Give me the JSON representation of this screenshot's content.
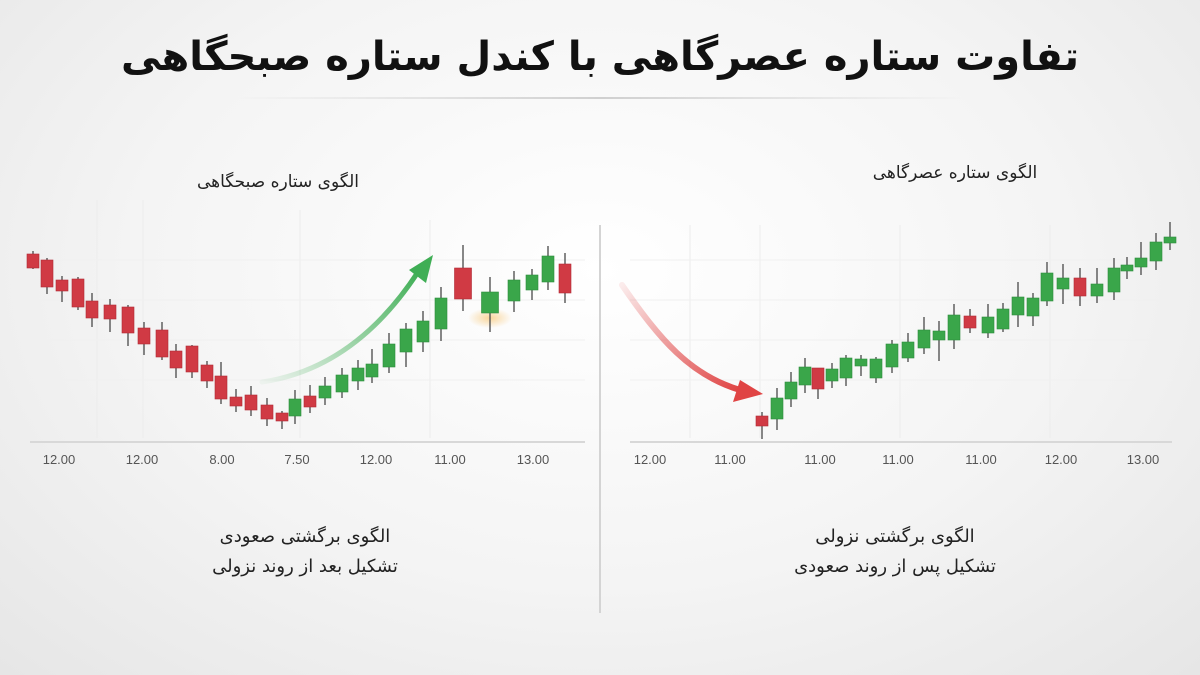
{
  "title": "تفاوت ستاره عصرگاهی با کندل ستاره صبحگاهی",
  "colors": {
    "bullish": "#3aa64a",
    "bearish": "#d03a44",
    "arrow_up": "#3fae55",
    "arrow_down": "#e04444"
  },
  "chart_data": [
    {
      "type": "candlestick",
      "title": "الگوی ستاره صبحگاهی",
      "caption_line1": "الگوی برگشتی صعودی",
      "caption_line2": "تشکیل بعد از روند نزولی",
      "x_tick_labels": [
        "12.00",
        "12.00",
        "8.00",
        "7.50",
        "12.00",
        "11.00",
        "13.00"
      ],
      "annotation": "upward-arrow",
      "grid": true,
      "candles": [
        {
          "o": 206,
          "h": 209,
          "l": 191,
          "c": 192
        },
        {
          "o": 200,
          "h": 202,
          "l": 166,
          "c": 173
        },
        {
          "o": 180,
          "h": 184,
          "l": 158,
          "c": 169
        },
        {
          "o": 181,
          "h": 183,
          "l": 150,
          "c": 153
        },
        {
          "o": 159,
          "h": 167,
          "l": 133,
          "c": 142
        },
        {
          "o": 155,
          "h": 161,
          "l": 128,
          "c": 141
        },
        {
          "o": 153,
          "h": 155,
          "l": 114,
          "c": 127
        },
        {
          "o": 132,
          "h": 138,
          "l": 105,
          "c": 116
        },
        {
          "o": 130,
          "h": 138,
          "l": 100,
          "c": 103
        },
        {
          "o": 109,
          "h": 116,
          "l": 82,
          "c": 92
        },
        {
          "o": 114,
          "h": 115,
          "l": 82,
          "c": 88
        },
        {
          "o": 95,
          "h": 99,
          "l": 72,
          "c": 79
        },
        {
          "o": 84,
          "h": 98,
          "l": 56,
          "c": 61
        },
        {
          "o": 63,
          "h": 71,
          "l": 48,
          "c": 54
        },
        {
          "o": 65,
          "h": 74,
          "l": 44,
          "c": 50
        },
        {
          "o": 55,
          "h": 62,
          "l": 34,
          "c": 41
        },
        {
          "o": 47,
          "h": 49,
          "l": 31,
          "c": 39
        },
        {
          "o": 44,
          "h": 70,
          "l": 36,
          "c": 61
        },
        {
          "o": 64,
          "h": 75,
          "l": 47,
          "c": 53
        },
        {
          "o": 62,
          "h": 83,
          "l": 55,
          "c": 74
        },
        {
          "o": 68,
          "h": 92,
          "l": 62,
          "c": 85
        },
        {
          "o": 79,
          "h": 100,
          "l": 70,
          "c": 92
        },
        {
          "o": 83,
          "h": 111,
          "l": 77,
          "c": 96
        },
        {
          "o": 93,
          "h": 127,
          "l": 87,
          "c": 116
        },
        {
          "o": 108,
          "h": 137,
          "l": 93,
          "c": 131
        },
        {
          "o": 118,
          "h": 149,
          "l": 108,
          "c": 139
        },
        {
          "o": 131,
          "h": 173,
          "l": 119,
          "c": 162
        },
        {
          "o": 192,
          "h": 215,
          "l": 149,
          "c": 161
        },
        {
          "o": 147,
          "h": 183,
          "l": 128,
          "c": 168
        },
        {
          "o": 159,
          "h": 189,
          "l": 148,
          "c": 180
        },
        {
          "o": 170,
          "h": 191,
          "l": 160,
          "c": 185
        },
        {
          "o": 178,
          "h": 214,
          "l": 170,
          "c": 204
        },
        {
          "o": 196,
          "h": 207,
          "l": 157,
          "c": 167
        }
      ]
    },
    {
      "type": "candlestick",
      "title": "الگوی ستاره عصرگاهی",
      "caption_line1": "الگوی برگشتی نزولی",
      "caption_line2": "تشکیل پس از روند صعودی",
      "x_tick_labels": [
        "12.00",
        "11.00",
        "11.00",
        "11.00",
        "11.00",
        "12.00",
        "13.00"
      ],
      "annotation": "downward-arrow",
      "grid": true,
      "candles": [
        {
          "o": 44,
          "h": 48,
          "l": 21,
          "c": 34
        },
        {
          "o": 41,
          "h": 72,
          "l": 30,
          "c": 62
        },
        {
          "o": 61,
          "h": 88,
          "l": 53,
          "c": 78
        },
        {
          "o": 75,
          "h": 102,
          "l": 67,
          "c": 93
        },
        {
          "o": 92,
          "h": 92,
          "l": 61,
          "c": 71
        },
        {
          "o": 79,
          "h": 97,
          "l": 72,
          "c": 91
        },
        {
          "o": 82,
          "h": 105,
          "l": 74,
          "c": 102
        },
        {
          "o": 94,
          "h": 105,
          "l": 84,
          "c": 101
        },
        {
          "o": 82,
          "h": 103,
          "l": 77,
          "c": 101
        },
        {
          "o": 93,
          "h": 120,
          "l": 87,
          "c": 116
        },
        {
          "o": 102,
          "h": 127,
          "l": 98,
          "c": 118
        },
        {
          "o": 112,
          "h": 143,
          "l": 106,
          "c": 130
        },
        {
          "o": 120,
          "h": 139,
          "l": 99,
          "c": 129
        },
        {
          "o": 120,
          "h": 156,
          "l": 111,
          "c": 145
        },
        {
          "o": 144,
          "h": 151,
          "l": 127,
          "c": 132
        },
        {
          "o": 127,
          "h": 156,
          "l": 122,
          "c": 143
        },
        {
          "o": 131,
          "h": 157,
          "l": 128,
          "c": 151
        },
        {
          "o": 145,
          "h": 178,
          "l": 133,
          "c": 163
        },
        {
          "o": 144,
          "h": 167,
          "l": 134,
          "c": 162
        },
        {
          "o": 159,
          "h": 198,
          "l": 154,
          "c": 187
        },
        {
          "o": 171,
          "h": 196,
          "l": 156,
          "c": 182
        },
        {
          "o": 182,
          "h": 192,
          "l": 154,
          "c": 164
        },
        {
          "o": 164,
          "h": 192,
          "l": 157,
          "c": 176
        },
        {
          "o": 168,
          "h": 202,
          "l": 160,
          "c": 192
        },
        {
          "o": 189,
          "h": 203,
          "l": 181,
          "c": 195
        },
        {
          "o": 193,
          "h": 218,
          "l": 185,
          "c": 202
        },
        {
          "o": 199,
          "h": 227,
          "l": 190,
          "c": 218
        },
        {
          "o": 217,
          "h": 238,
          "l": 210,
          "c": 223
        }
      ]
    }
  ]
}
